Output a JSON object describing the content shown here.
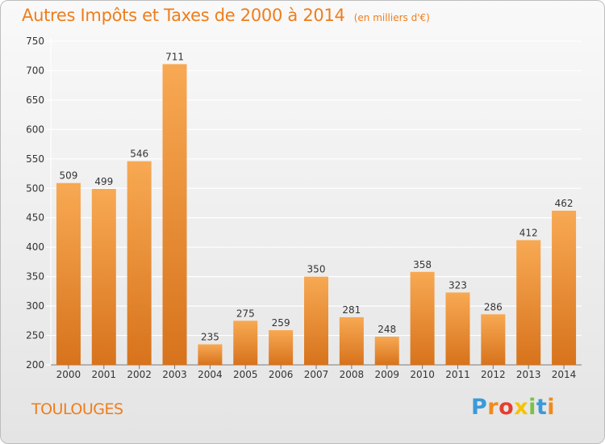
{
  "header": {
    "title": "Autres Impôts et Taxes de 2000 à 2014",
    "unit": "(en milliers d'€)"
  },
  "footer": {
    "commune": "TOULOUGES",
    "logo_letters": [
      "P",
      "r",
      "o",
      "x",
      "i",
      "t",
      "i"
    ],
    "logo_colors": [
      "#3a9ad9",
      "#f08a1c",
      "#e63e2e",
      "#f5c400",
      "#7bc144",
      "#3a9ad9",
      "#f08a1c"
    ]
  },
  "colors": {
    "bar_light": "#f8a953",
    "bar_dark": "#d7731c",
    "accent": "#ef7d1a",
    "grid": "#ffffff"
  },
  "chart_data": {
    "type": "bar",
    "categories": [
      "2000",
      "2001",
      "2002",
      "2003",
      "2004",
      "2005",
      "2006",
      "2007",
      "2008",
      "2009",
      "2010",
      "2011",
      "2012",
      "2013",
      "2014"
    ],
    "values": [
      509,
      499,
      546,
      711,
      235,
      275,
      259,
      350,
      281,
      248,
      358,
      323,
      286,
      412,
      462
    ],
    "ylim": [
      200,
      750
    ],
    "yticks": [
      200,
      250,
      300,
      350,
      400,
      450,
      500,
      550,
      600,
      650,
      700,
      750
    ],
    "grid": true,
    "data_labels": true
  }
}
